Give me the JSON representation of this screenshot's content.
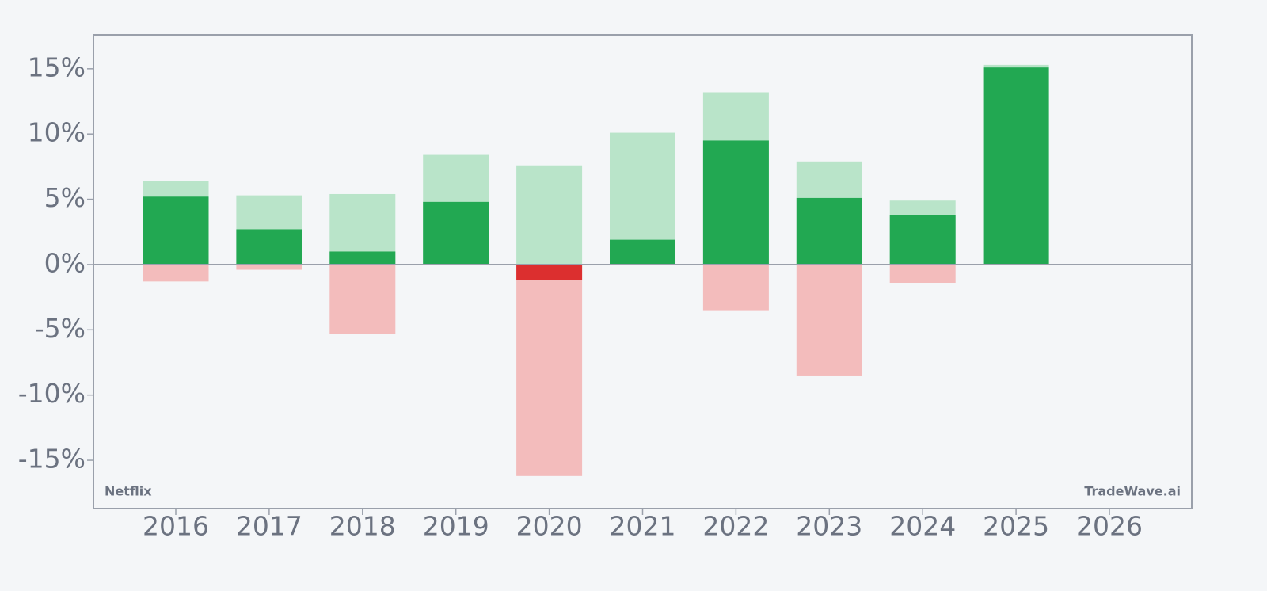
{
  "chart_data": {
    "type": "bar",
    "categories": [
      "2016",
      "2017",
      "2018",
      "2019",
      "2020",
      "2021",
      "2022",
      "2023",
      "2024",
      "2025",
      "2026"
    ],
    "series": [
      {
        "color": "#b9e4c9",
        "values": [
          6.4,
          5.3,
          5.4,
          8.4,
          7.6,
          10.1,
          13.2,
          7.9,
          4.9,
          15.3,
          null
        ]
      },
      {
        "color": "#f3bcbc",
        "values": [
          -1.3,
          -0.4,
          -5.3,
          0,
          -16.2,
          0,
          -3.5,
          -8.5,
          -1.4,
          0,
          null
        ]
      },
      {
        "color": "#22a852",
        "negative_color": "#dc2f2f",
        "values": [
          5.2,
          2.7,
          1.0,
          4.8,
          -1.2,
          1.9,
          9.5,
          5.1,
          3.8,
          15.1,
          null
        ]
      }
    ],
    "ylim": [
      -18.7,
      17.6
    ],
    "yticks": [
      {
        "value": -15,
        "label": "-15%"
      },
      {
        "value": -10,
        "label": "-10%"
      },
      {
        "value": -5,
        "label": "-5%"
      },
      {
        "value": 0,
        "label": "0%"
      },
      {
        "value": 5,
        "label": "5%"
      },
      {
        "value": 10,
        "label": "10%"
      },
      {
        "value": 15,
        "label": "15%"
      }
    ],
    "grid": false,
    "annotations": [
      "Netflix",
      "TradeWave.ai"
    ]
  }
}
